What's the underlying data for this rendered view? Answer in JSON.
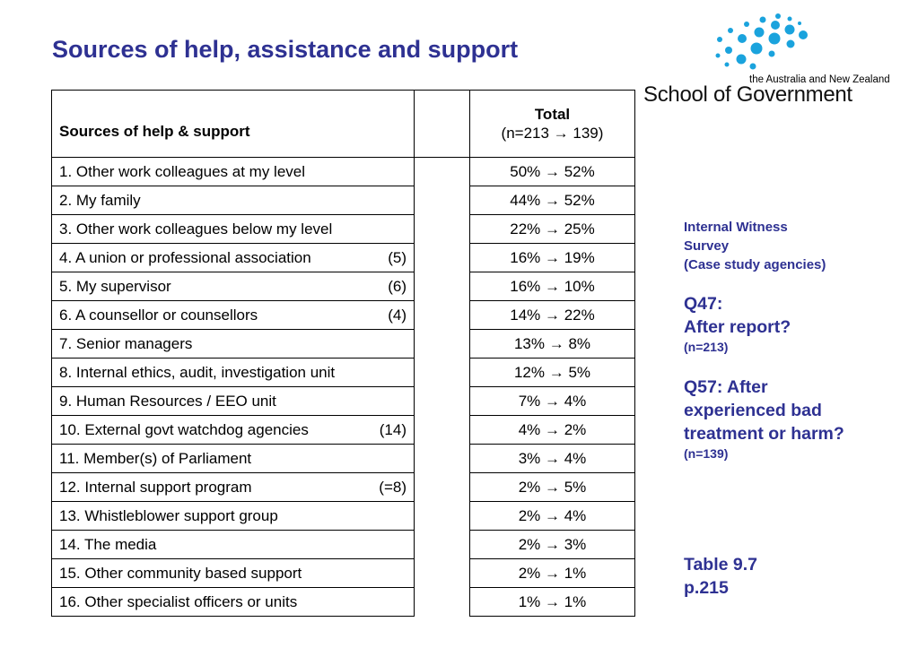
{
  "title": "Sources of help, assistance and support",
  "logo": {
    "tagline": "the Australia and New Zealand",
    "name": "School of Government",
    "dot_color": "#1aa3dd"
  },
  "table": {
    "header_label": "Sources of help & support",
    "header_total": "Total",
    "header_n": "(n=213 → 139)",
    "rows": [
      {
        "source": "1. Other work colleagues at my level",
        "rank": "",
        "total": "50% → 52%",
        "bold": false
      },
      {
        "source": "2. My family",
        "rank": "",
        "total": "44% → 52%",
        "bold": false
      },
      {
        "source": "3. Other work colleagues below my level",
        "rank": "",
        "total": "22% → 25%",
        "bold": false
      },
      {
        "source": "4. A union or professional association",
        "rank": "(5)",
        "total": "16% → 19%",
        "bold": false
      },
      {
        "source": "5. My supervisor",
        "rank": "(6)",
        "total": "16% → 10%",
        "bold": false
      },
      {
        "source": "6. A counsellor or counsellors",
        "rank": "(4)",
        "total": "14% → 22%",
        "bold": false
      },
      {
        "source": "7. Senior managers",
        "rank": "",
        "total": "13% → 8%",
        "bold": false
      },
      {
        "source": "8. Internal ethics, audit, investigation unit",
        "rank": "",
        "total": "12% → 5%",
        "bold": false
      },
      {
        "source": "9. Human Resources / EEO unit",
        "rank": "",
        "total": "7% → 4%",
        "bold": false
      },
      {
        "source": "10. External govt watchdog agencies",
        "rank": "(14)",
        "total": "4% → 2%",
        "bold": false
      },
      {
        "source": "11. Member(s) of Parliament",
        "rank": "",
        "total": "3% → 4%",
        "bold": false
      },
      {
        "source": "12. Internal support program",
        "rank": "(=8)",
        "total": "2% → 5%",
        "bold": true
      },
      {
        "source": "13. Whistleblower support group",
        "rank": "",
        "total": "2% → 4%",
        "bold": false
      },
      {
        "source": "14. The media",
        "rank": "",
        "total": "2% → 3%",
        "bold": false
      },
      {
        "source": "15. Other community based support",
        "rank": "",
        "total": "2% → 1%",
        "bold": false
      },
      {
        "source": "16. Other specialist officers or units",
        "rank": "",
        "total": "1% → 1%",
        "bold": false
      }
    ]
  },
  "notes": {
    "survey_line1": "Internal Witness",
    "survey_line2": "Survey",
    "survey_line3": "(Case study agencies)",
    "q47_line1": "Q47:",
    "q47_line2": "After report?",
    "q47_n": "(n=213)",
    "q57_text": "Q57: After experienced bad treatment or harm?",
    "q57_n": "(n=139)",
    "table_ref_line1": "Table 9.7",
    "table_ref_line2": "p.215"
  },
  "accent_color": "#2e3192"
}
